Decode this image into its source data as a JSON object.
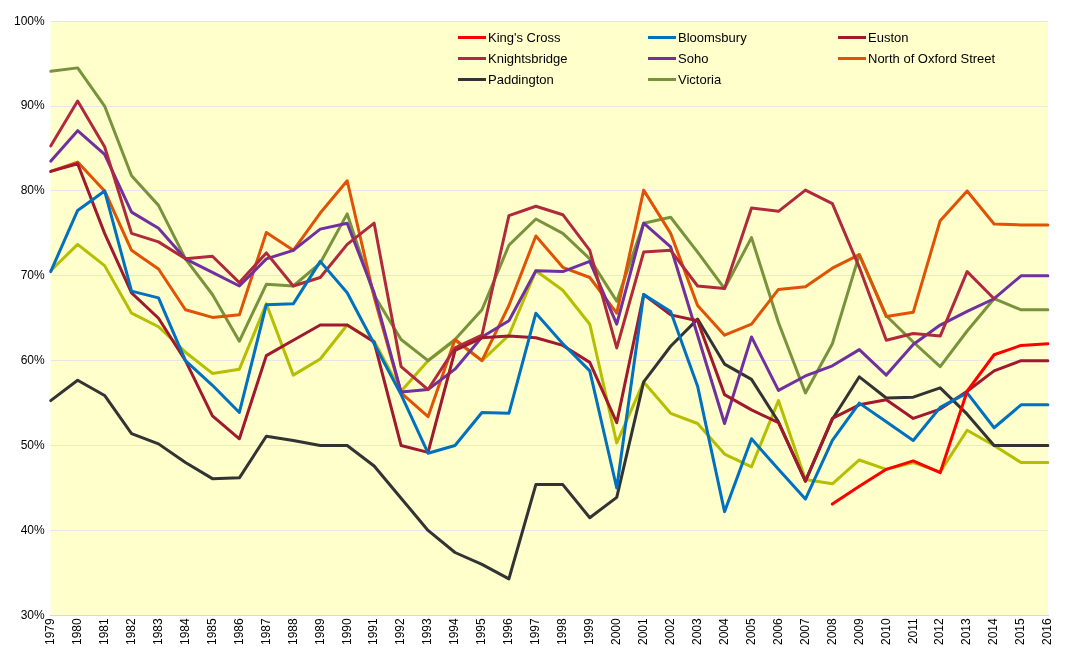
{
  "chart_data": {
    "type": "line",
    "categories": [
      "1979",
      "1980",
      "1981",
      "1982",
      "1983",
      "1984",
      "1985",
      "1986",
      "1987",
      "1988",
      "1989",
      "1990",
      "1991",
      "1992",
      "1993",
      "1994",
      "1995",
      "1996",
      "1997",
      "1998",
      "1999",
      "2000",
      "2001",
      "2002",
      "2003",
      "2004",
      "2005",
      "2006",
      "2007",
      "2008",
      "2009",
      "2010",
      "2011",
      "2012",
      "2013",
      "2014",
      "2015",
      "2016"
    ],
    "ylim": [
      30,
      100
    ],
    "yticks": [
      {
        "value": 30,
        "label": "30%"
      },
      {
        "value": 40,
        "label": "40%"
      },
      {
        "value": 50,
        "label": "50%"
      },
      {
        "value": 60,
        "label": "60%"
      },
      {
        "value": 70,
        "label": "70%"
      },
      {
        "value": 80,
        "label": "80%"
      },
      {
        "value": 90,
        "label": "90%"
      },
      {
        "value": 100,
        "label": "100%"
      }
    ],
    "grid": "y",
    "legend": "top",
    "marker": "none",
    "line_style": "solid",
    "series": [
      {
        "name": "King's Cross",
        "color": "#ff0000",
        "values": [
          null,
          null,
          null,
          null,
          null,
          null,
          null,
          null,
          null,
          null,
          null,
          null,
          null,
          null,
          null,
          null,
          null,
          null,
          null,
          null,
          null,
          null,
          null,
          null,
          null,
          null,
          null,
          null,
          null,
          43.1,
          45.2,
          47.2,
          48.2,
          46.8,
          56.4,
          60.7,
          61.8,
          62
        ]
      },
      {
        "name": "Bloomsbury",
        "color": "#0070c0",
        "values": [
          70.5,
          77.7,
          80,
          68.2,
          67.4,
          60,
          57.1,
          53.9,
          66.6,
          66.7,
          71.7,
          68,
          62,
          56,
          49.1,
          50,
          53.9,
          53.8,
          65.6,
          62,
          58.8,
          45,
          67.8,
          65.8,
          57,
          42.2,
          50.8,
          47.2,
          43.7,
          50.6,
          55,
          52.8,
          50.6,
          54.5,
          56.2,
          52.1,
          54.8,
          54.8
        ]
      },
      {
        "name": "Euston",
        "color": "#a0192f",
        "values": [
          82.3,
          83.2,
          75,
          68,
          65,
          60,
          53.5,
          50.8,
          60.6,
          62.4,
          64.2,
          64.2,
          62.2,
          50,
          49.2,
          61.2,
          62.7,
          62.9,
          62.7,
          61.8,
          59.8,
          52.7,
          67.8,
          65.4,
          64.7,
          56,
          54.2,
          52.7,
          45.8,
          53.2,
          54.8,
          55.4,
          53.2,
          54.3,
          56.4,
          58.8,
          60,
          60
        ]
      },
      {
        "name": "Knightsbridge",
        "color": "#b02a3e",
        "values": [
          85.3,
          90.6,
          85.2,
          75,
          74,
          72,
          72.3,
          69.2,
          72.7,
          68.8,
          69.8,
          73.7,
          76.2,
          59.3,
          56.6,
          61.5,
          63,
          77.1,
          78.2,
          77.2,
          73,
          61.5,
          72.8,
          73,
          68.8,
          68.5,
          78,
          77.6,
          80.1,
          78.5,
          71,
          62.4,
          63.2,
          62.9,
          70.5,
          67.3,
          null,
          null
        ]
      },
      {
        "name": "Soho",
        "color": "#7030a0",
        "values": [
          83.5,
          87.1,
          84.3,
          77.5,
          75.6,
          72,
          70.4,
          68.8,
          72,
          73,
          75.5,
          76.2,
          68,
          56.3,
          56.6,
          59,
          62.8,
          64.7,
          70.6,
          70.5,
          71.7,
          64.3,
          76.2,
          73.4,
          63,
          52.6,
          62.8,
          56.5,
          58.2,
          59.4,
          61.3,
          58.3,
          61.9,
          64.2,
          65.8,
          67.3,
          70,
          70
        ]
      },
      {
        "name": "North of Oxford Street",
        "color": "#e05206",
        "values": [
          82.3,
          83.4,
          80,
          73,
          70.8,
          66,
          65.1,
          65.4,
          75.1,
          73,
          77.4,
          81.2,
          67.5,
          56.2,
          53.4,
          62.5,
          60,
          66.5,
          74.7,
          71,
          69.8,
          65.6,
          80.1,
          75,
          66.5,
          63,
          64.3,
          68.4,
          68.7,
          70.9,
          72.5,
          65.2,
          65.7,
          76.5,
          80,
          76.1,
          76,
          76
        ]
      },
      {
        "name": "Paddington",
        "color": "#333333",
        "values": [
          55.3,
          57.7,
          55.9,
          51.4,
          50.2,
          48,
          46.1,
          46.2,
          51.1,
          50.6,
          50,
          50,
          47.6,
          43.8,
          40,
          37.4,
          36,
          34.3,
          45.4,
          45.4,
          41.5,
          43.9,
          57.5,
          61.7,
          64.9,
          59.6,
          57.8,
          52.8,
          45.8,
          53.1,
          58.1,
          55.6,
          55.7,
          56.8,
          53.7,
          50,
          50,
          50
        ]
      },
      {
        "name": "Victoria",
        "color": "#77933c",
        "values": [
          94.1,
          94.5,
          90,
          81.8,
          78.3,
          72,
          67.8,
          62.3,
          69,
          68.8,
          71.5,
          77.3,
          67.7,
          62.5,
          60,
          62.5,
          66,
          73.6,
          76.7,
          75,
          72,
          67,
          76.2,
          76.9,
          72.8,
          68.5,
          74.5,
          64.5,
          56.2,
          62,
          72.5,
          65.3,
          62.2,
          59.3,
          63.5,
          67.3,
          66,
          66
        ]
      },
      {
        "color": "#b5bf00",
        "values": [
          70.6,
          73.7,
          71.2,
          65.6,
          64,
          61,
          58.5,
          59,
          66.7,
          58.3,
          60.2,
          64.2,
          62.3,
          56.4,
          60,
          62.4,
          60,
          63,
          70.6,
          68.3,
          64.3,
          50.3,
          57.5,
          53.8,
          52.6,
          49,
          47.5,
          55.3,
          46,
          45.5,
          48.3,
          47.2,
          48,
          46.9,
          51.8,
          50,
          48,
          48
        ]
      }
    ]
  }
}
